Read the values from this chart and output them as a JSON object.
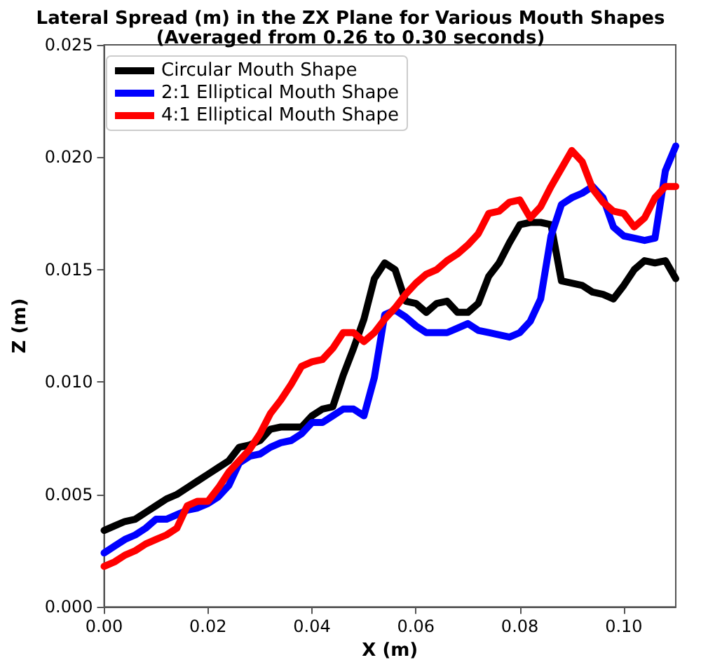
{
  "chart_data": {
    "type": "line",
    "title": "Lateral Spread (m) in the ZX Plane for Various Mouth Shapes",
    "subtitle": "(Averaged from 0.26 to 0.30 seconds)",
    "xlabel": "X (m)",
    "ylabel": "Z (m)",
    "x": [
      0,
      0.002,
      0.004,
      0.006,
      0.008,
      0.01,
      0.012,
      0.014,
      0.016,
      0.018,
      0.02,
      0.022,
      0.024,
      0.026,
      0.028,
      0.03,
      0.032,
      0.034,
      0.036,
      0.038,
      0.04,
      0.042,
      0.044,
      0.046,
      0.048,
      0.05,
      0.052,
      0.054,
      0.056,
      0.058,
      0.06,
      0.062,
      0.064,
      0.066,
      0.068,
      0.07,
      0.072,
      0.074,
      0.076,
      0.078,
      0.08,
      0.082,
      0.084,
      0.086,
      0.088,
      0.09,
      0.092,
      0.094,
      0.096,
      0.098,
      0.1,
      0.102,
      0.104,
      0.106,
      0.108,
      0.11
    ],
    "series": [
      {
        "name": "Circular Mouth Shape",
        "color": "#000000",
        "values": [
          0.0034,
          0.0036,
          0.0038,
          0.0039,
          0.0042,
          0.0045,
          0.0048,
          0.005,
          0.0053,
          0.0056,
          0.0059,
          0.0062,
          0.0065,
          0.0071,
          0.0072,
          0.0074,
          0.0079,
          0.008,
          0.008,
          0.008,
          0.0085,
          0.0088,
          0.0089,
          0.0103,
          0.0115,
          0.0128,
          0.0146,
          0.0153,
          0.015,
          0.0136,
          0.0135,
          0.0131,
          0.0135,
          0.0136,
          0.0131,
          0.0131,
          0.0135,
          0.0147,
          0.0153,
          0.0162,
          0.017,
          0.0171,
          0.0171,
          0.017,
          0.0145,
          0.0144,
          0.0143,
          0.014,
          0.0139,
          0.0137,
          0.0143,
          0.015,
          0.0154,
          0.0153,
          0.0154,
          0.0146
        ]
      },
      {
        "name": "2:1 Elliptical Mouth Shape",
        "color": "#0000ff",
        "values": [
          0.0024,
          0.0027,
          0.003,
          0.0032,
          0.0035,
          0.0039,
          0.0039,
          0.0041,
          0.0043,
          0.0044,
          0.0046,
          0.0049,
          0.0054,
          0.0064,
          0.0067,
          0.0068,
          0.0071,
          0.0073,
          0.0074,
          0.0077,
          0.0082,
          0.0082,
          0.0085,
          0.0088,
          0.0088,
          0.0085,
          0.0102,
          0.013,
          0.0132,
          0.0129,
          0.0125,
          0.0122,
          0.0122,
          0.0122,
          0.0124,
          0.0126,
          0.0123,
          0.0122,
          0.0121,
          0.012,
          0.0122,
          0.0127,
          0.0137,
          0.0165,
          0.0179,
          0.0182,
          0.0184,
          0.0187,
          0.0182,
          0.0169,
          0.0165,
          0.0164,
          0.0163,
          0.0164,
          0.0194,
          0.0205
        ]
      },
      {
        "name": "4:1 Elliptical Mouth Shape",
        "color": "#ff0000",
        "values": [
          0.0018,
          0.002,
          0.0023,
          0.0025,
          0.0028,
          0.003,
          0.0032,
          0.0035,
          0.0045,
          0.0047,
          0.0047,
          0.0053,
          0.006,
          0.0065,
          0.007,
          0.0077,
          0.0086,
          0.0092,
          0.0099,
          0.0107,
          0.0109,
          0.011,
          0.0115,
          0.0122,
          0.0122,
          0.0118,
          0.0122,
          0.0128,
          0.0133,
          0.0139,
          0.0144,
          0.0148,
          0.015,
          0.0154,
          0.0157,
          0.0161,
          0.0166,
          0.0175,
          0.0176,
          0.018,
          0.0181,
          0.0173,
          0.0178,
          0.0187,
          0.0195,
          0.0203,
          0.0198,
          0.0186,
          0.018,
          0.0176,
          0.0175,
          0.0169,
          0.0173,
          0.0182,
          0.0187,
          0.0187
        ]
      }
    ],
    "xlim": [
      0,
      0.11
    ],
    "ylim": [
      0,
      0.025
    ],
    "xticks": [
      {
        "value": 0,
        "label": "0.00"
      },
      {
        "value": 0.02,
        "label": "0.02"
      },
      {
        "value": 0.04,
        "label": "0.04"
      },
      {
        "value": 0.06,
        "label": "0.06"
      },
      {
        "value": 0.08,
        "label": "0.08"
      },
      {
        "value": 0.1,
        "label": "0.10"
      }
    ],
    "yticks": [
      {
        "value": 0,
        "label": "0.000"
      },
      {
        "value": 0.005,
        "label": "0.005"
      },
      {
        "value": 0.01,
        "label": "0.010"
      },
      {
        "value": 0.015,
        "label": "0.015"
      },
      {
        "value": 0.02,
        "label": "0.020"
      },
      {
        "value": 0.025,
        "label": "0.025"
      }
    ],
    "legend": "top left",
    "grid": false,
    "marker": "none",
    "line_style": "solid"
  }
}
